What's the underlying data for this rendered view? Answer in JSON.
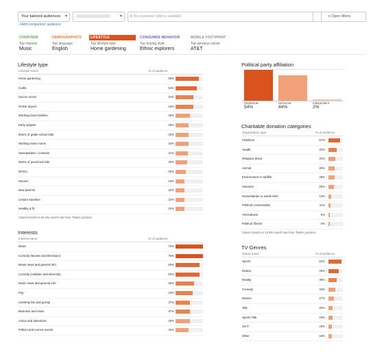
{
  "toolbar": {
    "audience_select": "Your tailored audiences",
    "expansion_placeholder": "No expansion options available",
    "open_filters": "Open filters",
    "add_comparison": "+Add comparison audience"
  },
  "tabs": [
    {
      "header": "OVERVIEW",
      "sub": "Top interest",
      "value": "Music",
      "color": "#6aa84f",
      "active": false
    },
    {
      "header": "DEMOGRAPHICS",
      "sub": "Top language",
      "value": "English",
      "color": "#e07b39",
      "active": false
    },
    {
      "header": "LIFESTYLE",
      "sub": "Top lifestyle type",
      "value": "Home gardening",
      "color": "#d9531e",
      "active": true
    },
    {
      "header": "CONSUMER BEHAVIOR",
      "sub": "Top buying style",
      "value": "Ethnic explorers",
      "color": "#7b5ea7",
      "active": false
    },
    {
      "header": "MOBILE FOOTPRINT",
      "sub": "Top wireless carrier",
      "value": "AT&T",
      "color": "#8a8f96",
      "active": false
    }
  ],
  "lifestyle": {
    "title": "Lifestyle type",
    "col1": "Lifestyle name",
    "col2": "% of audience",
    "note": "Values based on 91.6% match rate from Twitter partners",
    "rows": [
      {
        "label": "Home gardening",
        "pct": "58%",
        "v": 58
      },
      {
        "label": "Crafts",
        "pct": "54%",
        "v": 54
      },
      {
        "label": "Soccer moms",
        "pct": "44%",
        "v": 44
      },
      {
        "label": "Online buyers",
        "pct": "44%",
        "v": 44
      },
      {
        "label": "Working-class families",
        "pct": "36%",
        "v": 36
      },
      {
        "label": "Early adopter",
        "pct": "33%",
        "v": 33
      },
      {
        "label": "Moms of grade school kids",
        "pct": "33%",
        "v": 33
      },
      {
        "label": "Working-class moms",
        "pct": "33%",
        "v": 33
      },
      {
        "label": "Sweepstakes / contests",
        "pct": "31%",
        "v": 31
      },
      {
        "label": "Moms of preschool kids",
        "pct": "30%",
        "v": 30
      },
      {
        "label": "DIYers",
        "pct": "26%",
        "v": 26
      },
      {
        "label": "Seniors",
        "pct": "23%",
        "v": 23
      },
      {
        "label": "New parents",
        "pct": "22%",
        "v": 22
      },
      {
        "label": "Leisure travelers",
        "pct": "22%",
        "v": 22
      },
      {
        "label": "Healthy & fit",
        "pct": "22%",
        "v": 22
      }
    ]
  },
  "interests": {
    "title": "Interests",
    "col1": "Interest name",
    "col2": "% of audience",
    "rows": [
      {
        "label": "Music",
        "pct": "76%",
        "v": 76
      },
      {
        "label": "Comedy (Movies and television)",
        "pct": "75%",
        "v": 75
      },
      {
        "label": "Movie news and general info",
        "pct": "60%",
        "v": 60
      },
      {
        "label": "Comedy (Hobbies and interests)",
        "pct": "60%",
        "v": 60
      },
      {
        "label": "Music news and general info",
        "pct": "46%",
        "v": 46
      },
      {
        "label": "Pop",
        "pct": "43%",
        "v": 43
      },
      {
        "label": "Celebrity fan and gossip",
        "pct": "37%",
        "v": 37
      },
      {
        "label": "Business and news",
        "pct": "37%",
        "v": 37
      },
      {
        "label": "Action and adventure",
        "pct": "36%",
        "v": 36
      },
      {
        "label": "Politics and current events",
        "pct": "33%",
        "v": 33
      }
    ]
  },
  "political": {
    "title": "Political party affiliation",
    "parties": [
      {
        "label": "Republican",
        "pct": "54%",
        "v": 54,
        "color": "#d9531e"
      },
      {
        "label": "Democrat",
        "pct": "44%",
        "v": 44,
        "color": "#f2a07a"
      },
      {
        "label": "Independent",
        "pct": "2%",
        "v": 2,
        "color": "#f6c8b1"
      }
    ]
  },
  "charitable": {
    "title": "Charitable donation categories",
    "col1": "Organization type",
    "col2": "% of audience",
    "note": "Values based on 14.8% match rate from Twitter partners",
    "rows": [
      {
        "label": "Childrens",
        "pct": "57%",
        "v": 57
      },
      {
        "label": "Health",
        "pct": "40%",
        "v": 40
      },
      {
        "label": "Religious donor",
        "pct": "32%",
        "v": 32
      },
      {
        "label": "Animal",
        "pct": "30%",
        "v": 30
      },
      {
        "label": "Environment or wildlife",
        "pct": "29%",
        "v": 29
      },
      {
        "label": "Veterans",
        "pct": "25%",
        "v": 25
      },
      {
        "label": "Humanitarian or world relief",
        "pct": "13%",
        "v": 13
      },
      {
        "label": "Political: conservative",
        "pct": "11%",
        "v": 11
      },
      {
        "label": "Arts/cultural",
        "pct": "8%",
        "v": 8
      },
      {
        "label": "Political: liberal",
        "pct": "6%",
        "v": 6
      }
    ]
  },
  "tv": {
    "title": "TV Genres",
    "col1": "Genre name",
    "col2": "% of audience",
    "rows": [
      {
        "label": "Sports",
        "pct": "62%",
        "v": 62
      },
      {
        "label": "Drama",
        "pct": "49%",
        "v": 49
      },
      {
        "label": "Reality",
        "pct": "38%",
        "v": 38
      },
      {
        "label": "Comedy",
        "pct": "33%",
        "v": 33
      },
      {
        "label": "Movies",
        "pct": "27%",
        "v": 27
      },
      {
        "label": "Talk",
        "pct": "20%",
        "v": 20
      },
      {
        "label": "Sports Talk",
        "pct": "19%",
        "v": 19
      },
      {
        "label": "Sci-fi",
        "pct": "18%",
        "v": 18
      },
      {
        "label": "Other",
        "pct": "18%",
        "v": 18
      }
    ]
  }
}
